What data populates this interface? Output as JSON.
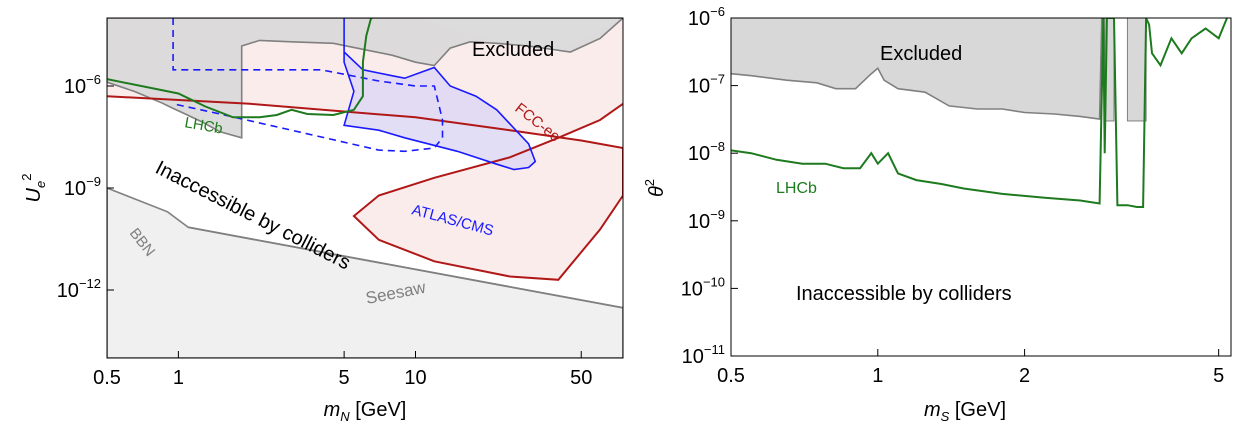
{
  "colors": {
    "excluded_fill": "#d8d8d8",
    "excluded_edge": "#808080",
    "lhcb": "#1e7a1e",
    "atlas_cms": "#1a1aff",
    "fcc_ee": "#b01818",
    "fcc_fill": "#fbecec",
    "atlas_fill": "#ddd8f4",
    "inaccessible_fill": "#f0f0f0",
    "seesaw": "#808080"
  },
  "chart_data": [
    {
      "type": "area",
      "xlabel": "m_N [GeV]",
      "ylabel": "U_e^2",
      "x_scale": "log",
      "y_scale": "log",
      "xlim": [
        0.5,
        75
      ],
      "ylim": [
        1e-14,
        0.0001
      ],
      "x_ticks": [
        0.5,
        1,
        5,
        10,
        50
      ],
      "x_tick_labels": [
        "0.5",
        "1",
        "5",
        "10",
        "50"
      ],
      "y_ticks": [
        1e-06,
        1e-09,
        1e-12
      ],
      "y_tick_labels": [
        {
          "base": "10",
          "exp": "−6"
        },
        {
          "base": "10",
          "exp": "−9"
        },
        {
          "base": "10",
          "exp": "−12"
        }
      ],
      "region_labels": {
        "excluded": "Excluded",
        "inaccessible": "Inaccessible by colliders",
        "lhcb": "LHCb",
        "fcc": "FCC-ee",
        "atlas": "ATLAS/CMS",
        "bbn": "BBN",
        "seesaw": "Seesaw"
      },
      "series": [
        {
          "name": "Excluded",
          "style": "filled",
          "x": [
            0.5,
            0.5,
            0.65,
            0.85,
            0.95,
            1.05,
            1.25,
            1.5,
            1.85,
            1.85,
            2.2,
            3,
            4.5,
            6,
            8,
            10,
            12,
            14,
            17,
            22,
            30,
            45,
            60,
            75,
            75
          ],
          "y": [
            0.0001,
            1.3e-06,
            7e-07,
            3.2e-07,
            2.2e-07,
            1.6e-07,
            9e-08,
            4.5e-08,
            3e-08,
            1.5e-05,
            2.2e-05,
            2e-05,
            1.8e-05,
            1.2e-05,
            8e-06,
            5e-06,
            4e-06,
            1.3e-05,
            2e-05,
            1.8e-05,
            1.5e-05,
            1e-05,
            2.5e-05,
            0.0001,
            0.0001
          ]
        },
        {
          "name": "BBN",
          "style": "filled",
          "x": [
            0.5,
            0.5,
            0.9,
            1.1,
            75,
            75
          ],
          "y": [
            1e-14,
            1e-09,
            2e-10,
            7e-11,
            3e-13,
            1e-14
          ]
        },
        {
          "name": "Seesaw",
          "x": [
            1.1,
            75
          ],
          "y": [
            7e-11,
            3e-13
          ]
        },
        {
          "name": "FCC-ee",
          "x": [
            0.5,
            2,
            10,
            25,
            50,
            75,
            75,
            60,
            40,
            25,
            12,
            7,
            5.5,
            7,
            12,
            25,
            40,
            60,
            75,
            75,
            40,
            20,
            10,
            5,
            2,
            1,
            0.5
          ],
          "y": [
            5e-07,
            3e-07,
            1.2e-07,
            5e-08,
            2.5e-08,
            1.5e-08,
            6e-10,
            6e-11,
            2e-12,
            2.5e-12,
            7e-12,
            3e-11,
            1.5e-10,
            6e-10,
            2e-09,
            8e-09,
            3e-08,
            1e-07,
            3e-07,
            0.0001,
            1e-05,
            2.5e-05,
            0.0001,
            0.0001,
            0.0001,
            0.0001,
            0.0001
          ]
        },
        {
          "name": "ATLAS/CMS",
          "x": [
            5,
            5,
            6,
            8,
            9,
            12,
            14,
            18,
            22,
            30,
            32,
            30,
            26,
            22,
            15,
            9,
            7,
            5,
            5.5,
            5,
            5,
            5
          ],
          "y": [
            0.0001,
            1e-05,
            3e-06,
            2e-06,
            1.7e-06,
            3.5e-06,
            1e-06,
            5e-07,
            2e-07,
            2e-08,
            6e-09,
            4e-09,
            3.5e-09,
            5e-09,
            1.2e-08,
            3e-08,
            5e-08,
            7e-08,
            7e-07,
            5e-06,
            2e-05,
            0.0001
          ]
        },
        {
          "name": "ATLAS/CMS displaced (dashed)",
          "x": [
            0.95,
            0.95,
            1.5,
            2.5,
            4,
            7,
            10,
            12,
            13,
            13,
            12,
            9,
            7,
            3,
            1.5,
            0.95
          ],
          "y": [
            0.0001,
            3e-06,
            3e-06,
            3e-06,
            3e-06,
            1.4e-06,
            1e-06,
            1e-06,
            1e-07,
            3e-08,
            1.5e-08,
            1.2e-08,
            1.3e-08,
            5e-08,
            1.5e-07,
            3e-07
          ]
        },
        {
          "name": "LHCb",
          "x": [
            0.5,
            1,
            1.3,
            1.7,
            2.2,
            2.6,
            3,
            3.5,
            4.5,
            5.5,
            6,
            6,
            6.2,
            6.5,
            6.6
          ],
          "y": [
            1.6e-06,
            6e-07,
            2.5e-07,
            1.2e-07,
            1.2e-07,
            1.4e-07,
            2e-07,
            1.5e-07,
            1.4e-07,
            2e-07,
            5e-07,
            5e-06,
            3e-05,
            0.0001,
            0.0001
          ]
        }
      ]
    },
    {
      "type": "area",
      "xlabel": "m_S [GeV]",
      "ylabel": "θ^2",
      "x_scale": "log",
      "y_scale": "log",
      "xlim": [
        0.5,
        5.3
      ],
      "ylim": [
        1e-11,
        1e-06
      ],
      "x_ticks": [
        0.5,
        1,
        2,
        5
      ],
      "x_tick_labels": [
        "0.5",
        "1",
        "2",
        "5"
      ],
      "y_ticks": [
        1e-06,
        1e-07,
        1e-08,
        1e-09,
        1e-10,
        1e-11
      ],
      "y_tick_labels": [
        {
          "base": "10",
          "exp": "−6"
        },
        {
          "base": "10",
          "exp": "−7"
        },
        {
          "base": "10",
          "exp": "−8"
        },
        {
          "base": "10",
          "exp": "−9"
        },
        {
          "base": "10",
          "exp": "−10"
        },
        {
          "base": "10",
          "exp": "−11"
        }
      ],
      "region_labels": {
        "excluded": "Excluded",
        "lhcb": "LHCb",
        "inaccessible": "Inaccessible by colliders"
      },
      "series": [
        {
          "name": "Excluded",
          "style": "filled",
          "x": [
            0.5,
            0.55,
            0.65,
            0.75,
            0.82,
            0.9,
            0.97,
            1.0,
            1.03,
            1.1,
            1.25,
            1.4,
            1.6,
            1.8,
            2.0,
            2.3,
            2.6,
            2.85,
            2.88
          ],
          "y": [
            1.5e-07,
            1.4e-07,
            1.2e-07,
            1.1e-07,
            9e-08,
            9e-08,
            1.5e-07,
            1.8e-07,
            1.2e-07,
            9e-08,
            8e-08,
            5e-08,
            4.5e-08,
            4.5e-08,
            4e-08,
            3.8e-08,
            3.5e-08,
            3.2e-08,
            1e-06
          ]
        },
        {
          "name": "LHCb",
          "x": [
            0.5,
            0.55,
            0.62,
            0.7,
            0.78,
            0.85,
            0.92,
            0.97,
            1.0,
            1.05,
            1.1,
            1.2,
            1.35,
            1.5,
            1.8,
            2.2,
            2.6,
            2.85,
            2.9,
            2.92,
            2.95,
            3.05,
            3.1,
            3.15,
            3.25,
            3.4,
            3.5,
            3.55,
            3.6,
            3.65,
            3.8,
            4.0,
            4.2,
            4.4,
            4.7,
            5.0,
            5.2
          ],
          "y": [
            1.1e-08,
            1e-08,
            8e-09,
            7e-09,
            7e-09,
            6e-09,
            6e-09,
            1e-08,
            7e-09,
            1e-08,
            5e-09,
            4e-09,
            3.5e-09,
            3e-09,
            2.5e-09,
            2.2e-09,
            2e-09,
            1.8e-09,
            1e-06,
            1e-08,
            1e-06,
            1e-06,
            1.7e-09,
            1.7e-09,
            1.7e-09,
            1.6e-09,
            1.6e-09,
            1e-06,
            8e-07,
            3e-07,
            2e-07,
            5e-07,
            3e-07,
            5e-07,
            7e-07,
            5e-07,
            1e-06
          ]
        }
      ]
    }
  ]
}
